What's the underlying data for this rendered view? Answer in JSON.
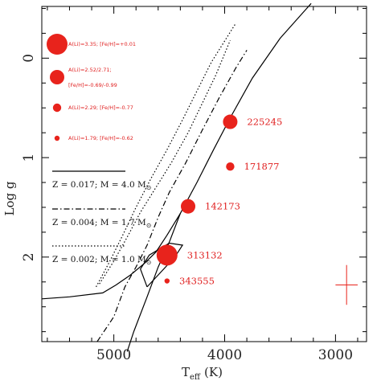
{
  "chart_data": {
    "type": "scatter",
    "title": "",
    "xlabel_main": "T",
    "xlabel_sub": "eff",
    "xlabel_unit": "(K)",
    "ylabel": "Log g",
    "xlim": [
      5650,
      2720
    ],
    "ylim": [
      -0.52,
      2.85
    ],
    "x_ticks": [
      5000,
      4000,
      3000
    ],
    "x_tick_labels": [
      "5000",
      "4000",
      "3000"
    ],
    "y_ticks": [
      0,
      1,
      2
    ],
    "y_tick_labels": [
      "0",
      "1",
      "2"
    ],
    "grid": false,
    "stars": [
      {
        "name": "225245",
        "teff": 3950,
        "logg": 0.64,
        "size_class": 3
      },
      {
        "name": "171877",
        "teff": 3950,
        "logg": 1.09,
        "size_class": 2
      },
      {
        "name": "142173",
        "teff": 4330,
        "logg": 1.49,
        "size_class": 3
      },
      {
        "name": "313132",
        "teff": 4520,
        "logg": 1.98,
        "size_class": 4
      },
      {
        "name": "343555",
        "teff": 4520,
        "logg": 2.24,
        "size_class": 1
      }
    ],
    "size_legend": [
      {
        "size_class": 4,
        "line1": "A(Li)=3.35; [Fe/H]=+0.01",
        "line2": ""
      },
      {
        "size_class": 3,
        "line1": "A(Li)=2.52/2.71;",
        "line2": "[Fe/H]=-0.69/-0.99"
      },
      {
        "size_class": 2,
        "line1": "A(Li)=2.29; [Fe/H]=-0.77",
        "line2": ""
      },
      {
        "size_class": 1,
        "line1": "A(Li)=1.79; [Fe/H]=-0.62",
        "line2": ""
      }
    ],
    "tracks": [
      {
        "name": "Z = 0.017; M = 4.0",
        "style": "solid",
        "points": [
          [
            5650,
            2.42
          ],
          [
            5400,
            2.4
          ],
          [
            5100,
            2.36
          ],
          [
            4980,
            2.28
          ],
          [
            4850,
            2.18
          ],
          [
            4720,
            2.06
          ],
          [
            4620,
            1.95
          ],
          [
            4520,
            1.78
          ],
          [
            4400,
            1.56
          ],
          [
            4250,
            1.25
          ],
          [
            4100,
            0.92
          ],
          [
            3950,
            0.6
          ],
          [
            3750,
            0.2
          ],
          [
            3500,
            -0.2
          ],
          [
            3220,
            -0.55
          ]
        ]
      },
      {
        "name": "Z = 0.017; M = 4.0 (loop)",
        "style": "solid",
        "points": [
          [
            4700,
            2.3
          ],
          [
            4600,
            2.18
          ],
          [
            4450,
            2.0
          ],
          [
            4380,
            1.88
          ],
          [
            4500,
            1.86
          ],
          [
            4680,
            1.98
          ],
          [
            4760,
            2.12
          ],
          [
            4700,
            2.3
          ]
        ]
      },
      {
        "name": "Z = 0.017; M = 4.0 (descent)",
        "style": "solid",
        "points": [
          [
            4400,
            1.56
          ],
          [
            4500,
            1.85
          ],
          [
            4600,
            2.1
          ],
          [
            4700,
            2.4
          ],
          [
            4820,
            2.75
          ],
          [
            4880,
            2.95
          ]
        ]
      },
      {
        "name": "Z = 0.004; M = 1.7",
        "style": "dashdot",
        "points": [
          [
            5150,
            2.85
          ],
          [
            5000,
            2.6
          ],
          [
            4900,
            2.3
          ],
          [
            4800,
            2.1
          ],
          [
            4700,
            1.88
          ],
          [
            4600,
            1.6
          ],
          [
            4500,
            1.35
          ],
          [
            4350,
            1.05
          ],
          [
            4200,
            0.72
          ],
          [
            4050,
            0.4
          ],
          [
            3900,
            0.1
          ],
          [
            3800,
            -0.08
          ]
        ]
      },
      {
        "name": "Z = 0.002; M = 1.0",
        "style": "dotted",
        "points": [
          [
            5130,
            2.27
          ],
          [
            5000,
            2.04
          ],
          [
            4880,
            1.8
          ],
          [
            4760,
            1.55
          ],
          [
            4620,
            1.3
          ],
          [
            4480,
            1.05
          ],
          [
            4330,
            0.75
          ],
          [
            4200,
            0.45
          ],
          [
            4080,
            0.17
          ],
          [
            3950,
            -0.18
          ]
        ]
      },
      {
        "name": "Z = 0.002; M = 1.0 (b)",
        "style": "dotted",
        "points": [
          [
            5160,
            2.3
          ],
          [
            5040,
            2.05
          ],
          [
            4920,
            1.78
          ],
          [
            4800,
            1.5
          ],
          [
            4660,
            1.2
          ],
          [
            4520,
            0.92
          ],
          [
            4380,
            0.62
          ],
          [
            4250,
            0.33
          ],
          [
            4120,
            0.04
          ],
          [
            3900,
            -0.35
          ]
        ]
      }
    ],
    "track_legend": [
      {
        "style": "solid",
        "text": "Z = 0.017; M = 4.0  M",
        "sun": "⊙"
      },
      {
        "style": "dashdot",
        "text": "Z = 0.004; M = 1.7 M",
        "sun": "⊙"
      },
      {
        "style": "dotted",
        "text": "Z = 0.002; M = 1.0 M",
        "sun": "⊙"
      }
    ],
    "error_bar": {
      "teff": 2900,
      "logg": 2.28,
      "dteff": 100,
      "dlogg": 0.2
    },
    "colors": {
      "stars": "#e8231c",
      "tracks": "#000000",
      "labels": "#e02020"
    }
  }
}
